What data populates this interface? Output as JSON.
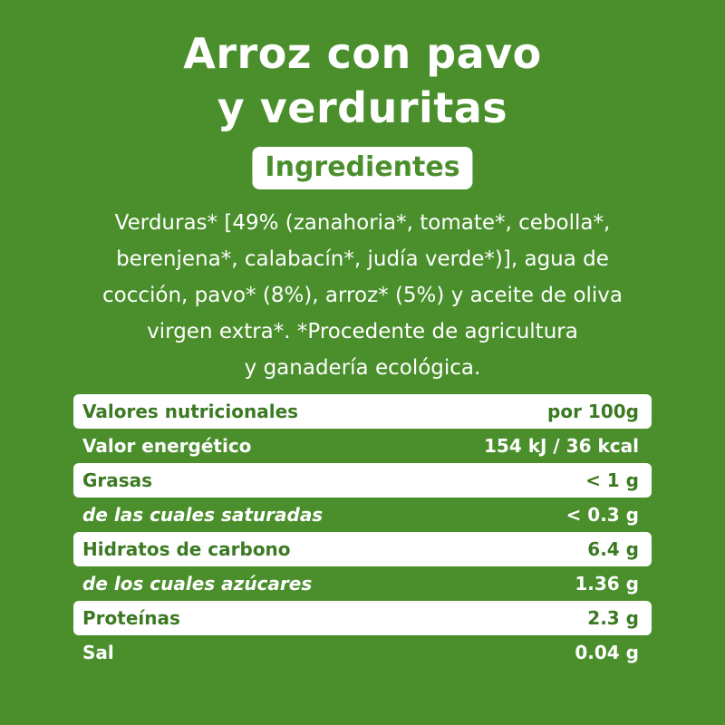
{
  "title": {
    "line1": "Arroz con pavo",
    "line2": "y verduritas"
  },
  "ingredients_heading": "Ingredientes",
  "ingredients_lines": [
    "Verduras* [49% (zanahoria*, tomate*, cebolla*,",
    "berenjena*, calabacín*, judía verde*)], agua de",
    "cocción, pavo* (8%), arroz* (5%) y aceite de oliva",
    "virgen extra*. *Procedente de agricultura",
    "y ganadería ecológica."
  ],
  "nutrition": {
    "rows": [
      {
        "label": "Valores nutricionales",
        "value": "por 100g"
      },
      {
        "label": "Valor energético",
        "value": "154 kJ / 36 kcal"
      },
      {
        "label": "Grasas",
        "value": "< 1 g"
      },
      {
        "label": "de las cuales saturadas",
        "value": "< 0.3 g"
      },
      {
        "label": "Hidratos de carbono",
        "value": "6.4 g"
      },
      {
        "label": "de los cuales azúcares",
        "value": "1.36 g"
      },
      {
        "label": "Proteínas",
        "value": "2.3 g"
      },
      {
        "label": "Sal",
        "value": "0.04 g"
      }
    ]
  },
  "colors": {
    "background": "#4a8f2c",
    "text": "#ffffff",
    "row_text_on_white": "#3b7a22"
  }
}
